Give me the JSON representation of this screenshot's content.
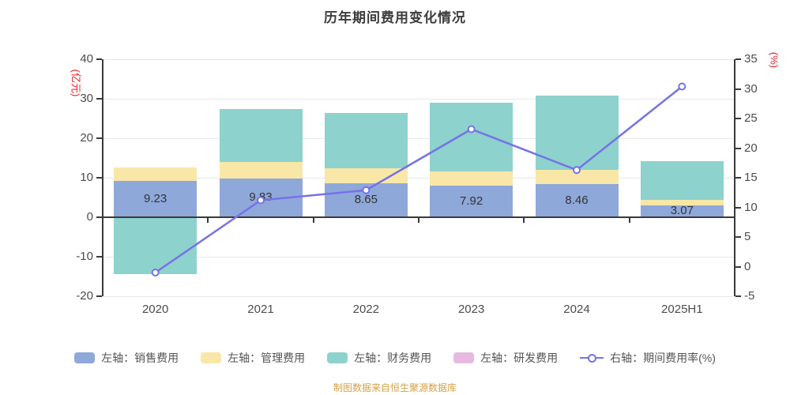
{
  "title": "历年期间费用变化情况",
  "footer": "制图数据来自恒生聚源数据库",
  "colors": {
    "axis_name_red": "#e62129",
    "footer_orange": "#d7a144",
    "axis_line": "#3a3a3a",
    "grid_line": "#e8e8e8",
    "tick_text": "#4c4c4c",
    "bar_label_text": "#333333"
  },
  "chart_data": {
    "type": "bar",
    "title": "历年期间费用变化情况",
    "categories": [
      "2020",
      "2021",
      "2022",
      "2023",
      "2024",
      "2025H1"
    ],
    "left_axis": {
      "name": "(亿元)",
      "min": -20,
      "max": 40,
      "ticks": [
        40,
        30,
        20,
        10,
        0,
        -10,
        -20
      ]
    },
    "right_axis": {
      "name": "(%)",
      "min": -5,
      "max": 35,
      "ticks": [
        35,
        30,
        25,
        20,
        15,
        10,
        5,
        0,
        -5
      ]
    },
    "grid": true,
    "legend_position": "bottom",
    "series": [
      {
        "name": "左轴：销售费用",
        "type": "bar",
        "axis": "left",
        "color": "#8fa8da",
        "values": [
          9.23,
          9.83,
          8.65,
          7.92,
          8.46,
          3.07
        ],
        "labels": [
          "9.23",
          "9.83",
          "8.65",
          "7.92",
          "8.46",
          "3.07"
        ]
      },
      {
        "name": "左轴：管理费用",
        "type": "bar",
        "axis": "left",
        "color": "#f8e7a6",
        "values": [
          3.4,
          4.2,
          3.8,
          3.6,
          3.5,
          1.3
        ]
      },
      {
        "name": "左轴：财务费用",
        "type": "bar",
        "axis": "left",
        "color": "#8dd2cc",
        "values": [
          -14.4,
          13.3,
          14.0,
          17.5,
          18.9,
          9.9
        ]
      },
      {
        "name": "左轴：研发费用",
        "type": "bar",
        "axis": "left",
        "color": "#e6b9e0",
        "values": [
          0,
          0,
          0,
          0,
          0,
          0
        ]
      },
      {
        "name": "右轴：期间费用率(%)",
        "type": "line",
        "axis": "right",
        "color": "#7672e6",
        "values": [
          -1.0,
          11.2,
          12.9,
          23.2,
          16.3,
          30.4
        ]
      }
    ]
  }
}
